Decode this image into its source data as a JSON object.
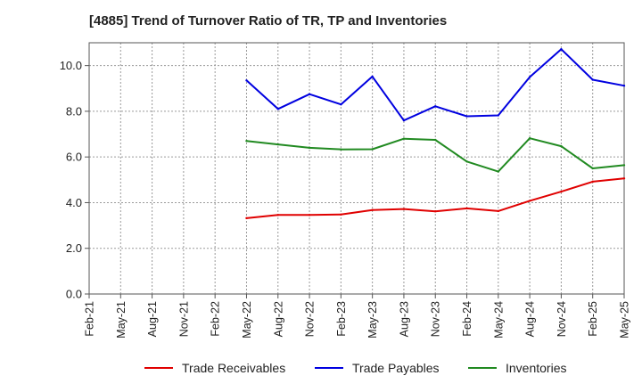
{
  "chart_data": {
    "type": "line",
    "title": "[4885]  Trend of Turnover Ratio of TR, TP and Inventories",
    "xlabel": "",
    "ylabel": "",
    "x": [
      "Feb-21",
      "May-21",
      "Aug-21",
      "Nov-21",
      "Feb-22",
      "May-22",
      "Aug-22",
      "Nov-22",
      "Feb-23",
      "May-23",
      "Aug-23",
      "Nov-23",
      "Feb-24",
      "May-24",
      "Aug-24",
      "Nov-24",
      "Feb-25",
      "May-25"
    ],
    "y_ticks": [
      "0.0",
      "2.0",
      "4.0",
      "6.0",
      "8.0",
      "10.0"
    ],
    "ylim": [
      0,
      11
    ],
    "grid": true,
    "legend_position": "bottom",
    "series": [
      {
        "name": "Trade Receivables",
        "color": "#e00000",
        "values": [
          null,
          null,
          null,
          null,
          null,
          3.32,
          3.46,
          3.46,
          3.48,
          3.68,
          3.72,
          3.62,
          3.75,
          3.63,
          4.08,
          4.48,
          4.92,
          5.06
        ]
      },
      {
        "name": "Trade Payables",
        "color": "#0000e0",
        "values": [
          null,
          null,
          null,
          null,
          null,
          9.35,
          8.1,
          8.75,
          8.3,
          9.52,
          7.6,
          8.22,
          7.78,
          7.82,
          9.5,
          10.72,
          9.38,
          9.12
        ]
      },
      {
        "name": "Inventories",
        "color": "#218a21",
        "values": [
          null,
          null,
          null,
          null,
          null,
          6.7,
          6.55,
          6.4,
          6.33,
          6.34,
          6.8,
          6.75,
          5.8,
          5.36,
          6.82,
          6.47,
          5.5,
          5.64
        ]
      }
    ]
  }
}
